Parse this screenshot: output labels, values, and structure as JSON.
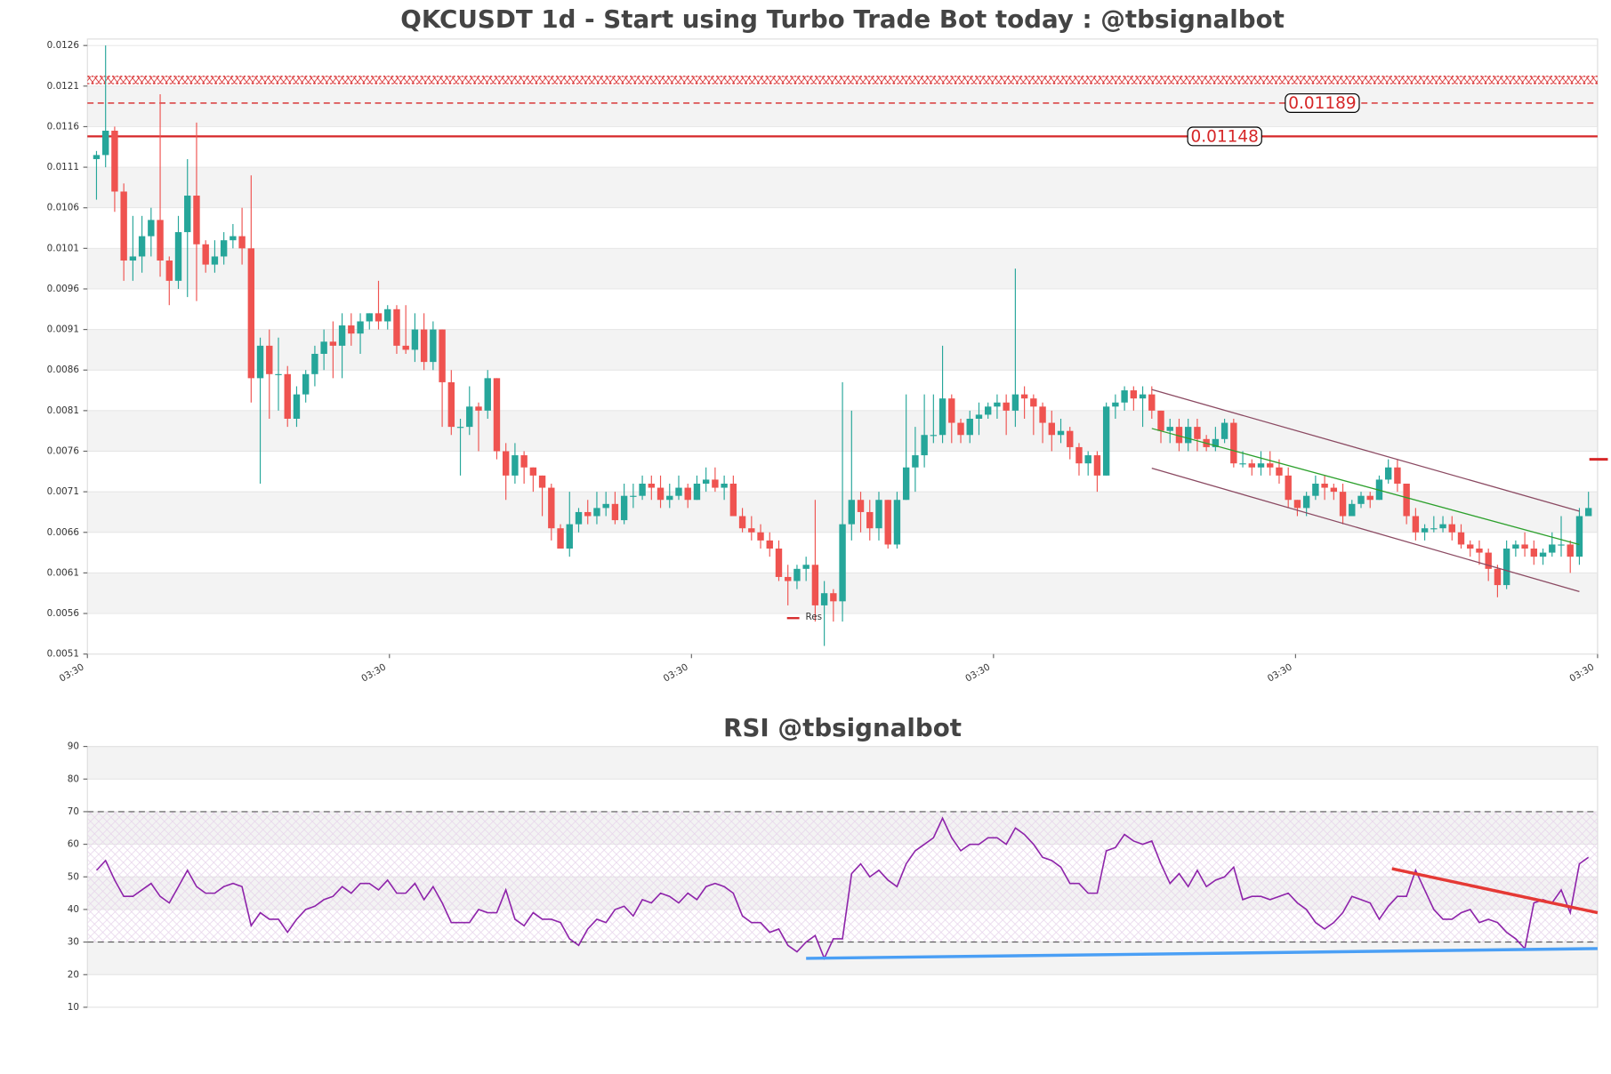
{
  "chart_data": [
    {
      "type": "candlestick",
      "title": "QKCUSDT 1d - Start using Turbo Trade Bot today : @tbsignalbot",
      "open": [
        0.0112,
        0.01125,
        0.01155,
        0.0108,
        0.00995,
        0.01,
        0.01025,
        0.01045,
        0.00995,
        0.0097,
        0.0103,
        0.01075,
        0.01015,
        0.0099,
        0.01,
        0.0102,
        0.01025,
        0.0101,
        0.0085,
        0.0089,
        0.00855,
        0.00855,
        0.008,
        0.0083,
        0.00855,
        0.0088,
        0.00895,
        0.0089,
        0.00915,
        0.00905,
        0.0092,
        0.0093,
        0.0092,
        0.00935,
        0.0089,
        0.00885,
        0.0091,
        0.0087,
        0.0091,
        0.00845,
        0.0079,
        0.0079,
        0.00815,
        0.0081,
        0.0085,
        0.0076,
        0.0073,
        0.00755,
        0.0074,
        0.0073,
        0.00715,
        0.00665,
        0.0064,
        0.0067,
        0.00685,
        0.0068,
        0.0069,
        0.00695,
        0.00675,
        0.00705,
        0.00705,
        0.0072,
        0.00715,
        0.007,
        0.00705,
        0.00715,
        0.007,
        0.0072,
        0.00725,
        0.00715,
        0.0072,
        0.0068,
        0.00665,
        0.0066,
        0.0065,
        0.0064,
        0.00605,
        0.006,
        0.00615,
        0.0062,
        0.0057,
        0.00585,
        0.00575,
        0.0067,
        0.007,
        0.00685,
        0.00665,
        0.007,
        0.00645,
        0.007,
        0.0074,
        0.00755,
        0.0078,
        0.0078,
        0.00825,
        0.00795,
        0.0078,
        0.008,
        0.00805,
        0.00815,
        0.0082,
        0.0081,
        0.0083,
        0.00825,
        0.00815,
        0.00795,
        0.0078,
        0.00785,
        0.00765,
        0.00745,
        0.00755,
        0.0073,
        0.00815,
        0.0082,
        0.00835,
        0.00825,
        0.0083,
        0.0081,
        0.00785,
        0.0079,
        0.0077,
        0.0079,
        0.00775,
        0.00765,
        0.00775,
        0.00795,
        0.00745,
        0.00745,
        0.0074,
        0.00745,
        0.0074,
        0.0073,
        0.007,
        0.0069,
        0.00705,
        0.0072,
        0.00715,
        0.0071,
        0.0068,
        0.00695,
        0.00705,
        0.007,
        0.00725,
        0.0074,
        0.0072,
        0.0068,
        0.0066,
        0.00665,
        0.00665,
        0.0067,
        0.0066,
        0.00645,
        0.0064,
        0.00635,
        0.00615,
        0.00595,
        0.0064,
        0.00645,
        0.0064,
        0.0063,
        0.00635,
        0.00645,
        0.00645,
        0.0063,
        0.0068
      ],
      "high": [
        0.0113,
        0.0126,
        0.0116,
        0.0109,
        0.0105,
        0.0105,
        0.0106,
        0.012,
        0.01,
        0.0105,
        0.0112,
        0.01165,
        0.0102,
        0.0102,
        0.0103,
        0.0104,
        0.0106,
        0.011,
        0.009,
        0.0091,
        0.009,
        0.00865,
        0.0084,
        0.0086,
        0.0089,
        0.0091,
        0.0092,
        0.0093,
        0.0093,
        0.0093,
        0.0093,
        0.0097,
        0.0094,
        0.0094,
        0.0094,
        0.0093,
        0.0093,
        0.0092,
        0.0091,
        0.0086,
        0.008,
        0.0084,
        0.0082,
        0.0086,
        0.0085,
        0.0077,
        0.0077,
        0.0076,
        0.0074,
        0.0073,
        0.0072,
        0.0067,
        0.0071,
        0.0069,
        0.007,
        0.0071,
        0.0071,
        0.0071,
        0.0072,
        0.0072,
        0.0073,
        0.0073,
        0.0073,
        0.0072,
        0.0073,
        0.0072,
        0.0073,
        0.0074,
        0.0074,
        0.0073,
        0.0073,
        0.0069,
        0.0068,
        0.0067,
        0.0066,
        0.0065,
        0.0062,
        0.0062,
        0.0063,
        0.007,
        0.006,
        0.0059,
        0.00845,
        0.0081,
        0.0071,
        0.007,
        0.0071,
        0.007,
        0.0071,
        0.0083,
        0.0079,
        0.0083,
        0.0083,
        0.0089,
        0.0083,
        0.008,
        0.0081,
        0.0082,
        0.0082,
        0.0083,
        0.0083,
        0.00985,
        0.0084,
        0.0083,
        0.0082,
        0.0081,
        0.008,
        0.0079,
        0.0077,
        0.0076,
        0.0076,
        0.0082,
        0.0083,
        0.0084,
        0.0084,
        0.0084,
        0.0084,
        0.0081,
        0.008,
        0.008,
        0.008,
        0.008,
        0.0078,
        0.0079,
        0.008,
        0.008,
        0.0076,
        0.0075,
        0.0076,
        0.0076,
        0.0075,
        0.0074,
        0.007,
        0.0071,
        0.0073,
        0.0073,
        0.0072,
        0.0072,
        0.007,
        0.0071,
        0.0071,
        0.0073,
        0.0075,
        0.0075,
        0.0072,
        0.0069,
        0.0067,
        0.0068,
        0.0068,
        0.0068,
        0.0067,
        0.0065,
        0.0065,
        0.0064,
        0.0062,
        0.0065,
        0.0065,
        0.0066,
        0.0065,
        0.0064,
        0.0066,
        0.0068,
        0.0065,
        0.0069,
        0.0071
      ],
      "low": [
        0.0107,
        0.0111,
        0.01055,
        0.0097,
        0.0097,
        0.0098,
        0.01,
        0.00975,
        0.0094,
        0.0096,
        0.0095,
        0.00945,
        0.0098,
        0.0098,
        0.0099,
        0.0101,
        0.0099,
        0.0082,
        0.0072,
        0.008,
        0.0081,
        0.0079,
        0.0079,
        0.0082,
        0.0084,
        0.0086,
        0.0085,
        0.0085,
        0.0089,
        0.0088,
        0.0091,
        0.0091,
        0.0091,
        0.0088,
        0.0088,
        0.0087,
        0.0086,
        0.0086,
        0.0079,
        0.0078,
        0.0073,
        0.0078,
        0.0076,
        0.008,
        0.0075,
        0.007,
        0.0072,
        0.0072,
        0.0071,
        0.0068,
        0.0065,
        0.0064,
        0.0063,
        0.0066,
        0.0067,
        0.0067,
        0.0068,
        0.0067,
        0.0067,
        0.0069,
        0.007,
        0.007,
        0.0069,
        0.0069,
        0.007,
        0.0069,
        0.007,
        0.0071,
        0.0071,
        0.007,
        0.0068,
        0.0066,
        0.0065,
        0.0064,
        0.0063,
        0.006,
        0.0057,
        0.0059,
        0.006,
        0.0055,
        0.0052,
        0.0055,
        0.0055,
        0.0065,
        0.0066,
        0.0065,
        0.0065,
        0.0064,
        0.0064,
        0.007,
        0.0071,
        0.0074,
        0.0077,
        0.0077,
        0.0077,
        0.0077,
        0.0077,
        0.0078,
        0.008,
        0.008,
        0.0078,
        0.0079,
        0.008,
        0.0078,
        0.0077,
        0.0076,
        0.0077,
        0.0075,
        0.0073,
        0.0073,
        0.0071,
        0.0073,
        0.008,
        0.0081,
        0.0081,
        0.0079,
        0.008,
        0.0077,
        0.0077,
        0.0076,
        0.0076,
        0.0076,
        0.0076,
        0.0076,
        0.0077,
        0.0074,
        0.0074,
        0.0073,
        0.0073,
        0.0073,
        0.0072,
        0.0069,
        0.0068,
        0.0068,
        0.007,
        0.007,
        0.007,
        0.0067,
        0.0068,
        0.0069,
        0.0069,
        0.007,
        0.0072,
        0.0071,
        0.0067,
        0.0065,
        0.0065,
        0.0066,
        0.0066,
        0.0065,
        0.0064,
        0.0063,
        0.0062,
        0.006,
        0.0058,
        0.0059,
        0.0063,
        0.0063,
        0.0062,
        0.0062,
        0.0063,
        0.0063,
        0.0061,
        0.0062,
        0.0068
      ],
      "close": [
        0.01125,
        0.01155,
        0.0108,
        0.00995,
        0.01,
        0.01025,
        0.01045,
        0.00995,
        0.0097,
        0.0103,
        0.01075,
        0.01015,
        0.0099,
        0.01,
        0.0102,
        0.01025,
        0.0101,
        0.0085,
        0.0089,
        0.00855,
        0.00855,
        0.008,
        0.0083,
        0.00855,
        0.0088,
        0.00895,
        0.0089,
        0.00915,
        0.00905,
        0.0092,
        0.0093,
        0.0092,
        0.00935,
        0.0089,
        0.00885,
        0.0091,
        0.0087,
        0.0091,
        0.00845,
        0.0079,
        0.0079,
        0.00815,
        0.0081,
        0.0085,
        0.0076,
        0.0073,
        0.00755,
        0.0074,
        0.0073,
        0.00715,
        0.00665,
        0.0064,
        0.0067,
        0.00685,
        0.0068,
        0.0069,
        0.00695,
        0.00675,
        0.00705,
        0.00705,
        0.0072,
        0.00715,
        0.007,
        0.00705,
        0.00715,
        0.007,
        0.0072,
        0.00725,
        0.00715,
        0.0072,
        0.0068,
        0.00665,
        0.0066,
        0.0065,
        0.0064,
        0.00605,
        0.006,
        0.00615,
        0.0062,
        0.0057,
        0.00585,
        0.00575,
        0.0067,
        0.007,
        0.00685,
        0.00665,
        0.007,
        0.00645,
        0.007,
        0.0074,
        0.00755,
        0.0078,
        0.0078,
        0.00825,
        0.00795,
        0.0078,
        0.008,
        0.00805,
        0.00815,
        0.0082,
        0.0081,
        0.0083,
        0.00825,
        0.00815,
        0.00795,
        0.0078,
        0.00785,
        0.00765,
        0.00745,
        0.00755,
        0.0073,
        0.00815,
        0.0082,
        0.00835,
        0.00825,
        0.0083,
        0.0081,
        0.00785,
        0.0079,
        0.0077,
        0.0079,
        0.00775,
        0.00765,
        0.00775,
        0.00795,
        0.00745,
        0.00745,
        0.0074,
        0.00745,
        0.0074,
        0.0073,
        0.007,
        0.0069,
        0.00705,
        0.0072,
        0.00715,
        0.0071,
        0.0068,
        0.00695,
        0.00705,
        0.007,
        0.00725,
        0.0074,
        0.0072,
        0.0068,
        0.0066,
        0.00665,
        0.00665,
        0.0067,
        0.0066,
        0.00645,
        0.0064,
        0.00635,
        0.00615,
        0.00595,
        0.0064,
        0.00645,
        0.0064,
        0.0063,
        0.00635,
        0.00645,
        0.00645,
        0.0063,
        0.0068,
        0.0069
      ],
      "up_color": "#26a69a",
      "down_color": "#ef5350",
      "xlim": [
        -1,
        165
      ],
      "xticks": [
        {
          "value": -1,
          "label": "03:30"
        },
        {
          "value": 32.2,
          "label": "03:30"
        },
        {
          "value": 65.4,
          "label": "03:30"
        },
        {
          "value": 98.6,
          "label": "03:30"
        },
        {
          "value": 131.8,
          "label": "03:30"
        },
        {
          "value": 165,
          "label": "03:30"
        }
      ],
      "ylim": [
        0.0051,
        0.01268
      ],
      "yticks": [
        0.0051,
        0.0056,
        0.0061,
        0.0066,
        0.0071,
        0.0076,
        0.0081,
        0.0086,
        0.0091,
        0.0096,
        0.0101,
        0.0106,
        0.0111,
        0.0116,
        0.0121,
        0.0126
      ],
      "grid": true,
      "hlines": [
        {
          "value": 0.01189,
          "style": "dashed",
          "color": "#d62728"
        },
        {
          "value": 0.01148,
          "style": "solid",
          "color": "#d62728"
        }
      ],
      "zone": [
        0.01213,
        0.01222
      ],
      "trendlines": [
        {
          "color": "#8b4a62",
          "x": [
            116,
            163
          ],
          "y": [
            0.00836,
            0.00686
          ]
        },
        {
          "color": "#8b4a62",
          "x": [
            116,
            163
          ],
          "y": [
            0.00739,
            0.00587
          ]
        },
        {
          "color": "#2ca02c",
          "x": [
            116,
            163
          ],
          "y": [
            0.00788,
            0.00645
          ]
        }
      ],
      "res": {
        "name": "Res",
        "color": "#d62728",
        "value": 0.0075
      }
    },
    {
      "type": "line",
      "title": "RSI @tbsignalbot",
      "values": [
        52,
        55,
        49,
        44,
        44,
        46,
        48,
        44,
        42,
        47,
        52,
        47,
        45,
        45,
        47,
        48,
        47,
        35,
        39,
        37,
        37,
        33,
        37,
        40,
        41,
        43,
        44,
        47,
        45,
        48,
        48,
        46,
        49,
        45,
        45,
        48,
        43,
        47,
        42,
        36,
        36,
        36,
        40,
        39,
        39,
        46,
        37,
        35,
        39,
        37,
        37,
        36,
        31,
        29,
        34,
        37,
        36,
        40,
        41,
        38,
        43,
        42,
        45,
        44,
        42,
        45,
        43,
        47,
        48,
        47,
        45,
        38,
        36,
        36,
        33,
        34,
        29,
        27,
        30,
        32,
        25,
        31,
        31,
        51,
        54,
        50,
        52,
        49,
        47,
        54,
        58,
        60,
        62,
        68,
        62,
        58,
        60,
        60,
        62,
        62,
        60,
        65,
        63,
        60,
        56,
        55,
        53,
        48,
        48,
        45,
        45,
        58,
        59,
        63,
        61,
        60,
        61,
        54,
        48,
        51,
        47,
        52,
        47,
        49,
        50,
        53,
        43,
        44,
        44,
        43,
        44,
        45,
        42,
        40,
        36,
        34,
        36,
        39,
        44,
        43,
        42,
        37,
        41,
        44,
        44,
        52,
        46,
        40,
        37,
        37,
        39,
        40,
        36,
        37,
        36,
        33,
        31,
        28,
        42,
        43,
        42,
        46,
        39,
        54,
        56
      ],
      "color": "#8e24aa",
      "xlim": [
        -1,
        165
      ],
      "ylim": [
        10,
        90
      ],
      "yticks": [
        10,
        20,
        30,
        40,
        50,
        60,
        70,
        80,
        90
      ],
      "grid": true,
      "levels": [
        30,
        70
      ],
      "trendlines": [
        {
          "color": "#4a9ff5",
          "x": [
            78,
            165
          ],
          "y": [
            25,
            28
          ]
        },
        {
          "color": "#e53935",
          "x": [
            142.4,
            165
          ],
          "y": [
            52.5,
            39
          ]
        }
      ]
    }
  ]
}
